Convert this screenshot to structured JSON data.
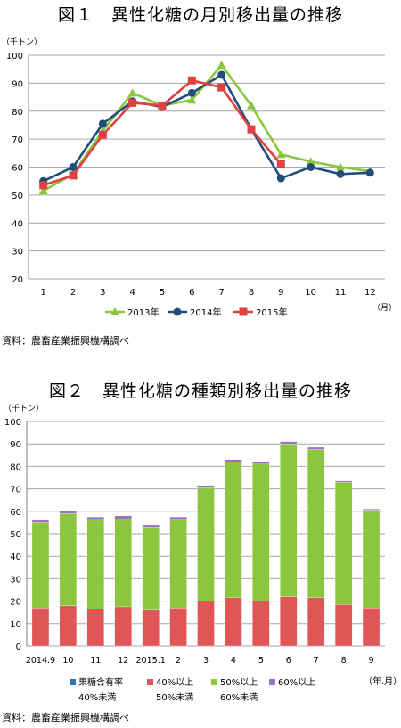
{
  "chart1": {
    "chart_data": {
      "type": "line",
      "title": "図１　異性化糖の月別移出量の推移",
      "y_unit": "（千トン）",
      "x_unit": "（月）",
      "categories": [
        "1",
        "2",
        "3",
        "4",
        "5",
        "6",
        "7",
        "8",
        "9",
        "10",
        "11",
        "12"
      ],
      "ylim": [
        20,
        100
      ],
      "yticks": [
        "20",
        "30",
        "40",
        "50",
        "60",
        "70",
        "80",
        "90",
        "100"
      ],
      "grid": true,
      "legend_position": "bottom",
      "series": [
        {
          "name": "2013年",
          "color": "#8cc63f",
          "marker": "triangle",
          "values": [
            51.5,
            57.5,
            73,
            86.5,
            82,
            84,
            96.5,
            82,
            64.5,
            62,
            60,
            58.5
          ]
        },
        {
          "name": "2014年",
          "color": "#1f4e79",
          "marker": "circle",
          "values": [
            55,
            60,
            75.5,
            83.5,
            81.5,
            86.5,
            93,
            73.5,
            56,
            60,
            57.5,
            58
          ]
        },
        {
          "name": "2015年",
          "color": "#e04040",
          "marker": "square",
          "values": [
            53.5,
            57,
            71.5,
            83,
            82,
            91,
            88.5,
            73.5,
            61,
            null,
            null,
            null
          ]
        }
      ]
    },
    "source": "資料：農畜産業振興機構調べ"
  },
  "chart2": {
    "chart_data": {
      "type": "bar",
      "stacked": true,
      "title": "図２　異性化糖の種類別移出量の推移",
      "y_unit": "（千トン）",
      "x_unit": "（年.月）",
      "categories": [
        "2014.9",
        "10",
        "11",
        "12",
        "2015.1",
        "2",
        "3",
        "4",
        "5",
        "6",
        "7",
        "8",
        "9"
      ],
      "ylim": [
        0,
        100
      ],
      "yticks": [
        "0",
        "10",
        "20",
        "30",
        "40",
        "50",
        "60",
        "70",
        "80",
        "90",
        "100"
      ],
      "grid": true,
      "legend_position": "bottom",
      "series": [
        {
          "name": "果糖含有率40%未満",
          "label_line1": "果糖含有率",
          "label_line2": "40%未満",
          "color": "#2e75b6",
          "values": [
            0,
            0,
            0,
            0,
            0,
            0,
            0,
            0,
            0,
            0,
            0,
            0,
            0
          ]
        },
        {
          "name": "40%以上50%未満",
          "label_line1": "40%以上",
          "label_line2": "50%未満",
          "color": "#e05555",
          "values": [
            17,
            18,
            16.5,
            17.5,
            16,
            17,
            20,
            21.5,
            20,
            22,
            21.5,
            18.5,
            17
          ]
        },
        {
          "name": "50%以上60%未満",
          "label_line1": "50%以上",
          "label_line2": "60%未満",
          "color": "#8cc63f",
          "values": [
            38,
            41,
            40,
            39,
            37,
            39,
            50.5,
            60.5,
            61,
            68,
            66,
            54.5,
            43.5
          ]
        },
        {
          "name": "60%以上",
          "label_line1": "60%以上",
          "label_line2": "",
          "color": "#9b72c0",
          "values": [
            1,
            1,
            1,
            1.5,
            1,
            1.5,
            1,
            1,
            1,
            1,
            1,
            0.5,
            0.5
          ]
        }
      ]
    },
    "source": "資料：農畜産業振興機構調べ"
  }
}
